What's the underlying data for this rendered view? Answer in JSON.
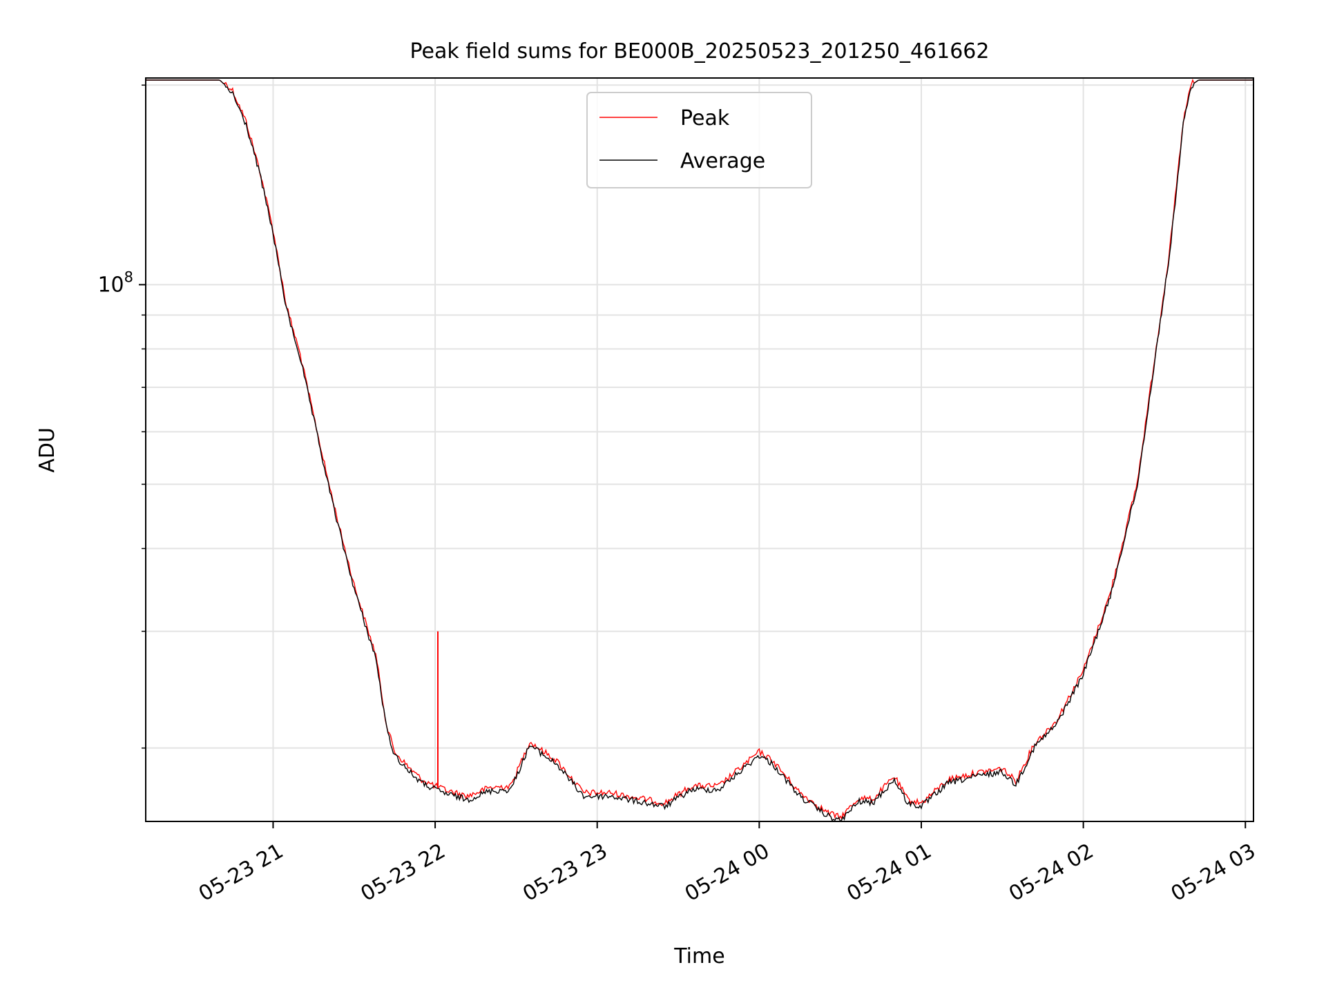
{
  "chart_data": {
    "type": "line",
    "title": "Peak field sums for BE000B_20250523_201250_461662",
    "xlabel": "Time",
    "ylabel": "ADU",
    "y_scale": "log",
    "ylim": [
      15500000,
      205000000
    ],
    "xlim": [
      "2025-05-23 20:12:50",
      "2025-05-24 03:03:00"
    ],
    "x_ticks": [
      {
        "value": "2025-05-23 21:00",
        "label": "05-23 21"
      },
      {
        "value": "2025-05-23 22:00",
        "label": "05-23 22"
      },
      {
        "value": "2025-05-23 23:00",
        "label": "05-23 23"
      },
      {
        "value": "2025-05-24 00:00",
        "label": "05-24 00"
      },
      {
        "value": "2025-05-24 01:00",
        "label": "05-24 01"
      },
      {
        "value": "2025-05-24 02:00",
        "label": "05-24 02"
      },
      {
        "value": "2025-05-24 03:00",
        "label": "05-24 03"
      }
    ],
    "y_major_ticks": [
      {
        "value": 100000000,
        "base": "10",
        "exp": "8"
      }
    ],
    "y_minor_ticks": [
      20000000,
      30000000,
      40000000,
      50000000,
      60000000,
      70000000,
      80000000,
      90000000,
      200000000
    ],
    "grid": true,
    "legend_position": "upper center",
    "legend": [
      {
        "label": "Peak",
        "color": "#ff0000"
      },
      {
        "label": "Average",
        "color": "#000000"
      }
    ],
    "series": [
      {
        "name": "Average",
        "color": "#000000",
        "points": [
          [
            "2025-05-23 20:12:50",
            204000000
          ],
          [
            "2025-05-23 20:40",
            204000000
          ],
          [
            "2025-05-23 20:45",
            195000000
          ],
          [
            "2025-05-23 20:50",
            175000000
          ],
          [
            "2025-05-23 20:55",
            148000000
          ],
          [
            "2025-05-23 21:00",
            120000000
          ],
          [
            "2025-05-23 21:05",
            92000000
          ],
          [
            "2025-05-23 21:10",
            78000000
          ],
          [
            "2025-05-23 21:15",
            63000000
          ],
          [
            "2025-05-23 21:20",
            51000000
          ],
          [
            "2025-05-23 21:25",
            42000000
          ],
          [
            "2025-05-23 21:30",
            35000000
          ],
          [
            "2025-05-23 21:35",
            30000000
          ],
          [
            "2025-05-23 21:38",
            27500000
          ],
          [
            "2025-05-23 21:42",
            21500000
          ],
          [
            "2025-05-23 21:45",
            19600000
          ],
          [
            "2025-05-23 21:50",
            18600000
          ],
          [
            "2025-05-23 21:55",
            17800000
          ],
          [
            "2025-05-23 22:00",
            17400000
          ],
          [
            "2025-05-23 22:05",
            17100000
          ],
          [
            "2025-05-23 22:12",
            16800000
          ],
          [
            "2025-05-23 22:20",
            17300000
          ],
          [
            "2025-05-23 22:28",
            17400000
          ],
          [
            "2025-05-23 22:35",
            20300000
          ],
          [
            "2025-05-23 22:45",
            19000000
          ],
          [
            "2025-05-23 22:55",
            17000000
          ],
          [
            "2025-05-23 23:05",
            17000000
          ],
          [
            "2025-05-23 23:15",
            16700000
          ],
          [
            "2025-05-23 23:25",
            16400000
          ],
          [
            "2025-05-23 23:35",
            17400000
          ],
          [
            "2025-05-23 23:45",
            17400000
          ],
          [
            "2025-05-23 24:00",
            19600000
          ],
          [
            "2025-05-24 00:05",
            19000000
          ],
          [
            "2025-05-24 00:15",
            17000000
          ],
          [
            "2025-05-24 00:25",
            15900000
          ],
          [
            "2025-05-24 00:30",
            15600000
          ],
          [
            "2025-05-24 00:37",
            16700000
          ],
          [
            "2025-05-24 00:42",
            16600000
          ],
          [
            "2025-05-24 00:50",
            18000000
          ],
          [
            "2025-05-24 00:55",
            16600000
          ],
          [
            "2025-05-24 01:00",
            16400000
          ],
          [
            "2025-05-24 01:10",
            17800000
          ],
          [
            "2025-05-24 01:20",
            18200000
          ],
          [
            "2025-05-24 01:30",
            18500000
          ],
          [
            "2025-05-24 01:35",
            17700000
          ],
          [
            "2025-05-24 01:42",
            20200000
          ],
          [
            "2025-05-24 01:50",
            21800000
          ],
          [
            "2025-05-24 02:00",
            26000000
          ],
          [
            "2025-05-24 02:10",
            34000000
          ],
          [
            "2025-05-24 02:20",
            50000000
          ],
          [
            "2025-05-24 02:27",
            80000000
          ],
          [
            "2025-05-24 02:32",
            112000000
          ],
          [
            "2025-05-24 02:37",
            175000000
          ],
          [
            "2025-05-24 02:40",
            200000000
          ],
          [
            "2025-05-24 02:43",
            204000000
          ],
          [
            "2025-05-24 03:03",
            204000000
          ]
        ]
      },
      {
        "name": "Peak",
        "color": "#ff0000",
        "spike": {
          "x": "2025-05-23 22:01",
          "from": 17400000,
          "to": 30000000
        }
      }
    ]
  }
}
